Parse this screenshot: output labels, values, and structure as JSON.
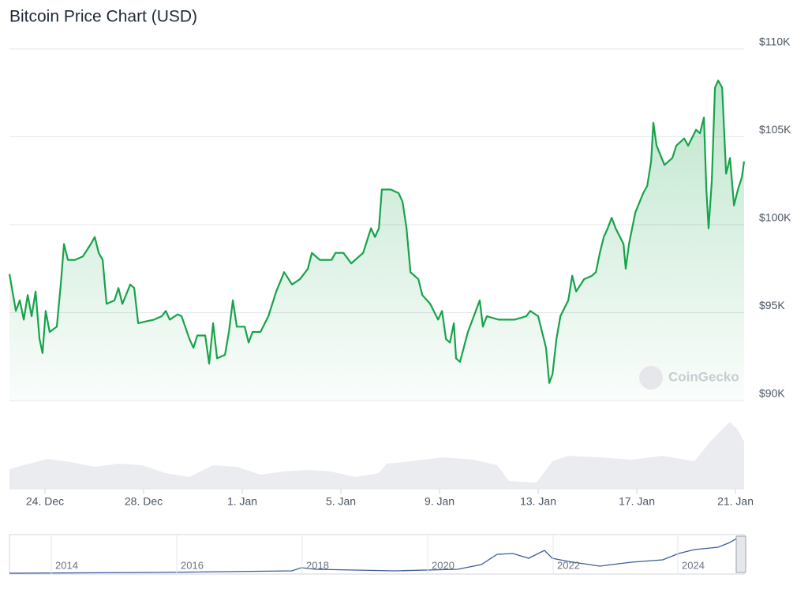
{
  "chart_data": {
    "type": "line",
    "title": "Bitcoin Price Chart (USD)",
    "x": [
      -1.44,
      -1.18,
      -1.02,
      -0.86,
      -0.7,
      -0.54,
      -0.38,
      -0.22,
      -0.1,
      0.03,
      0.19,
      0.48,
      0.64,
      0.77,
      0.93,
      1.22,
      1.54,
      1.86,
      2.02,
      2.18,
      2.34,
      2.5,
      2.82,
      2.98,
      3.14,
      3.46,
      3.62,
      3.78,
      4.1,
      4.42,
      4.74,
      4.9,
      5.06,
      5.38,
      5.54,
      5.86,
      6.02,
      6.18,
      6.5,
      6.66,
      6.82,
      6.98,
      7.3,
      7.46,
      7.62,
      7.78,
      8.1,
      8.26,
      8.42,
      8.74,
      9.06,
      9.38,
      9.7,
      10.02,
      10.34,
      10.66,
      10.82,
      11.14,
      11.62,
      11.78,
      12.1,
      12.42,
      12.9,
      13.06,
      13.22,
      13.38,
      13.54,
      13.66,
      14.02,
      14.34,
      14.5,
      14.66,
      14.82,
      15.14,
      15.3,
      15.62,
      15.94,
      16.1,
      16.26,
      16.42,
      16.58,
      16.67,
      16.83,
      17.15,
      17.47,
      17.63,
      17.76,
      17.92,
      18.4,
      19.04,
      19.52,
      19.68,
      20.0,
      20.16,
      20.32,
      20.45,
      20.58,
      20.74,
      20.9,
      21.22,
      21.38,
      21.54,
      21.86,
      22.18,
      22.34,
      22.5,
      22.66,
      22.82,
      22.98,
      23.14,
      23.46,
      23.55,
      23.68,
      23.94,
      24.26,
      24.42,
      24.58,
      24.67,
      24.8,
      25.12,
      25.44,
      25.6,
      25.92,
      26.08,
      26.4,
      26.56,
      26.72,
      26.82,
      26.91,
      27.04,
      27.17,
      27.3,
      27.46,
      27.62,
      27.78,
      27.94,
      28.1,
      28.26,
      28.35
    ],
    "values": [
      97200,
      95100,
      95700,
      94600,
      96000,
      94800,
      96200,
      93500,
      92700,
      95100,
      93900,
      94200,
      96600,
      98900,
      98000,
      98000,
      98200,
      98900,
      99300,
      98400,
      98000,
      95500,
      95700,
      96400,
      95500,
      96600,
      96400,
      94400,
      94500,
      94600,
      94800,
      95100,
      94600,
      94900,
      94800,
      93500,
      93000,
      93700,
      93700,
      92100,
      94400,
      92400,
      92600,
      93900,
      95700,
      94200,
      94200,
      93300,
      93900,
      93900,
      94800,
      96200,
      97300,
      96600,
      96900,
      97500,
      98400,
      98000,
      98000,
      98400,
      98400,
      97800,
      98400,
      99100,
      99800,
      99300,
      99800,
      102000,
      102000,
      101800,
      101300,
      99800,
      97300,
      96900,
      96000,
      95500,
      94600,
      95100,
      93500,
      93300,
      94400,
      92400,
      92200,
      93900,
      95100,
      95700,
      94200,
      94800,
      94600,
      94600,
      94800,
      95100,
      94800,
      93900,
      93000,
      91000,
      91500,
      93500,
      94800,
      95700,
      97100,
      96200,
      96900,
      97100,
      97300,
      98400,
      99300,
      99800,
      100400,
      99800,
      98900,
      97500,
      98900,
      100700,
      101800,
      102200,
      103600,
      105800,
      104500,
      103400,
      103800,
      104500,
      104900,
      104500,
      105400,
      105200,
      106100,
      102000,
      99800,
      102500,
      107800,
      108200,
      107800,
      102900,
      103800,
      101100,
      102000,
      102700,
      103600
    ],
    "color": "#16a34a",
    "xlim": [
      -1.44,
      28.35
    ],
    "xticks": [
      {
        "value": 0,
        "label": "24. Dec"
      },
      {
        "value": 4,
        "label": "28. Dec"
      },
      {
        "value": 8,
        "label": "1. Jan"
      },
      {
        "value": 12,
        "label": "5. Jan"
      },
      {
        "value": 16,
        "label": "9. Jan"
      },
      {
        "value": 20,
        "label": "13. Jan"
      },
      {
        "value": 24,
        "label": "17. Jan"
      },
      {
        "value": 28,
        "label": "21. Jan"
      }
    ],
    "ylim": [
      90000,
      110000
    ],
    "yticks": [
      {
        "value": 90000,
        "label": "$90K"
      },
      {
        "value": 95000,
        "label": "$95K"
      },
      {
        "value": 100000,
        "label": "$100K"
      },
      {
        "value": 105000,
        "label": "$105K"
      },
      {
        "value": 110000,
        "label": "$110K"
      }
    ],
    "grid": true,
    "watermark": "CoinGecko",
    "navigator_labels": [
      "2014",
      "2016",
      "2018",
      "2020",
      "2022",
      "2024"
    ]
  }
}
